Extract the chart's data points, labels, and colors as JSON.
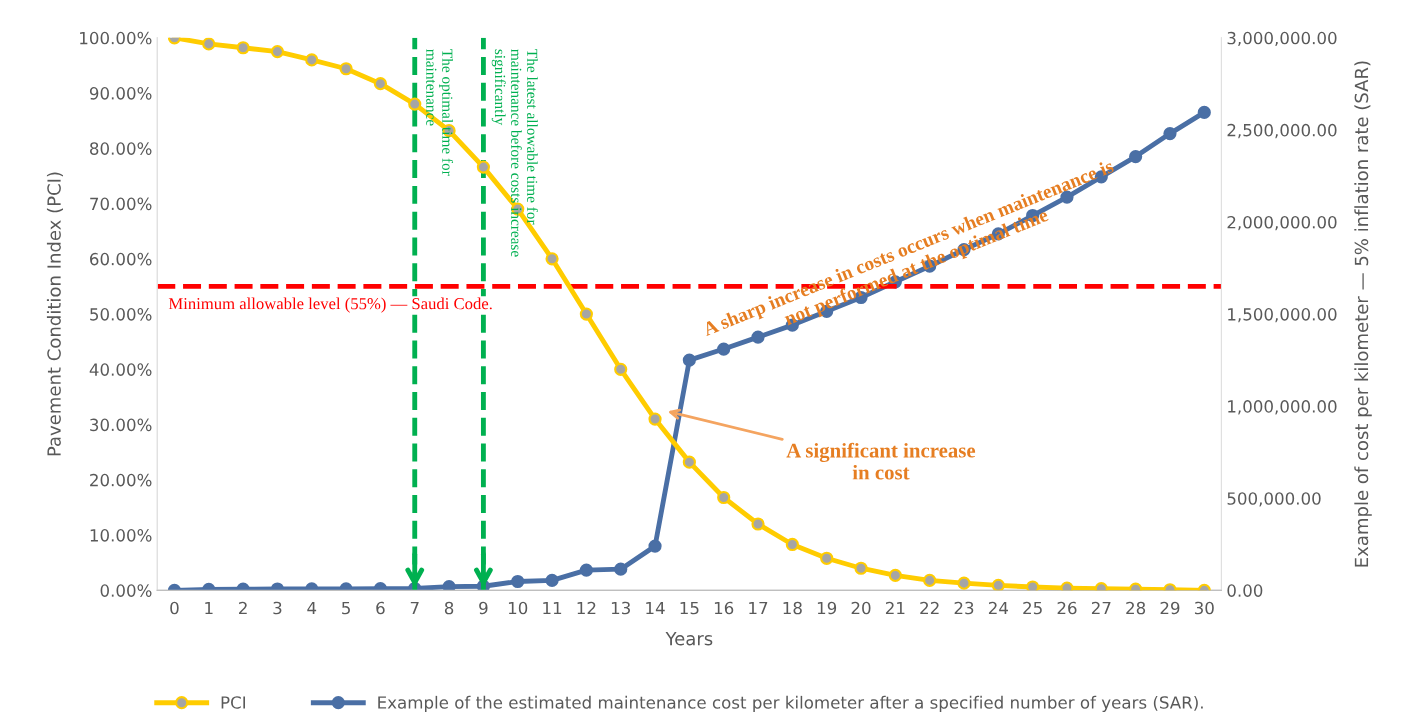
{
  "chart_data": {
    "type": "line",
    "xlabel": "Years",
    "ylabel": "Pavement Condition Index (PCI)",
    "y2label": "Example of cost per kilometer — 5% inflation rate (SAR)",
    "categories": [
      "0",
      "1",
      "2",
      "3",
      "4",
      "5",
      "6",
      "7",
      "8",
      "9",
      "10",
      "11",
      "12",
      "13",
      "14",
      "15",
      "16",
      "17",
      "18",
      "19",
      "20",
      "21",
      "22",
      "23",
      "24",
      "25",
      "26",
      "27",
      "28",
      "29",
      "30"
    ],
    "series": [
      {
        "name": "PCI",
        "color": "#ffcc00",
        "values": [
          100,
          98.9,
          98.2,
          97.5,
          96.0,
          94.4,
          91.7,
          88.0,
          83.2,
          76.6,
          69.0,
          60.0,
          50.0,
          40.0,
          31.0,
          23.2,
          16.8,
          12.0,
          8.3,
          5.8,
          4.0,
          2.7,
          1.8,
          1.3,
          0.9,
          0.6,
          0.4,
          0.3,
          0.2,
          0.1,
          0
        ]
      },
      {
        "name": "Example of the estimated maintenance cost per kilometer after a specified number of years (SAR).",
        "color": "#4a6fa5",
        "axis": "y2",
        "values": [
          0,
          5000,
          6000,
          7000,
          8000,
          8000,
          9000,
          10000,
          20000,
          22000,
          48000,
          54000,
          110000,
          115000,
          240000,
          1250000,
          1310000,
          1375000,
          1440000,
          1515000,
          1590000,
          1675000,
          1760000,
          1850000,
          1935000,
          2035000,
          2135000,
          2245000,
          2355000,
          2480000,
          2595000
        ]
      }
    ],
    "ylim": [
      0,
      100
    ],
    "yticks": [
      {
        "value": 0,
        "label": "0.00%"
      },
      {
        "value": 10,
        "label": "10.00%"
      },
      {
        "value": 20,
        "label": "20.00%"
      },
      {
        "value": 30,
        "label": "30.00%"
      },
      {
        "value": 40,
        "label": "40.00%"
      },
      {
        "value": 50,
        "label": "50.00%"
      },
      {
        "value": 60,
        "label": "60.00%"
      },
      {
        "value": 70,
        "label": "70.00%"
      },
      {
        "value": 80,
        "label": "80.00%"
      },
      {
        "value": 90,
        "label": "90.00%"
      },
      {
        "value": 100,
        "label": "100.00%"
      }
    ],
    "y2lim": [
      0,
      3000000
    ],
    "y2ticks": [
      {
        "value": 0,
        "label": "0.00"
      },
      {
        "value": 500000,
        "label": "500,000.00"
      },
      {
        "value": 1000000,
        "label": "1,000,000.00"
      },
      {
        "value": 1500000,
        "label": "1,500,000.00"
      },
      {
        "value": 2000000,
        "label": "2,000,000.00"
      },
      {
        "value": 2500000,
        "label": "2,500,000.00"
      },
      {
        "value": 3000000,
        "label": "3,000,000.00"
      }
    ],
    "ref_lines": [
      {
        "axis": "y",
        "value": 55,
        "label": "Minimum allowable level (55%) — Saudi Code.",
        "color": "#ff0000",
        "line_style": "dashed"
      },
      {
        "axis": "x",
        "value": "7",
        "label": "The optimal time for\nmaintenance",
        "color": "#00b050",
        "line_style": "dashed"
      },
      {
        "axis": "x",
        "value": "9",
        "label": "The latest allowable time for\nmaintenance before costs increase\nsignificantly",
        "color": "#00b050",
        "line_style": "dashed"
      }
    ],
    "annotations": [
      "A significant increase\nin cost",
      "A sharp increase in costs occurs when maintenance is\nnot performed at the optimal time"
    ],
    "marker": "circle",
    "line_style": "solid",
    "grid": false,
    "legend": "bottom"
  }
}
